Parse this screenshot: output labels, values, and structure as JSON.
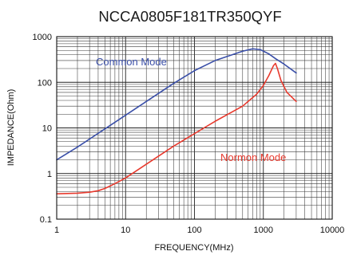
{
  "chart_data": {
    "type": "line",
    "title": "NCCA0805F181TR350QYF",
    "xlabel": "FREQUENCY(MHz)",
    "ylabel": "IMPEDANCE(Ohm)",
    "x_scale": "log",
    "y_scale": "log",
    "xlim": [
      1,
      10000
    ],
    "ylim": [
      0.1,
      1000
    ],
    "x_ticks": [
      1,
      10,
      100,
      1000,
      10000
    ],
    "x_tick_labels": [
      "1",
      "10",
      "100",
      "1000",
      "10000"
    ],
    "y_ticks": [
      0.1,
      1,
      10,
      100,
      1000
    ],
    "y_tick_labels": [
      "0.1",
      "1",
      "10",
      "100",
      "1000"
    ],
    "grid": true,
    "legend": "none",
    "series": [
      {
        "name": "Common Mode",
        "color": "#3a4fa8",
        "x": [
          1,
          2,
          5,
          10,
          20,
          50,
          100,
          200,
          300,
          500,
          700,
          900,
          1200,
          1500,
          2000,
          3000
        ],
        "y": [
          2,
          3.8,
          9.5,
          19,
          38,
          95,
          180,
          300,
          370,
          480,
          540,
          520,
          420,
          330,
          250,
          160
        ]
      },
      {
        "name": "Normon Mode",
        "color": "#e83a2e",
        "x": [
          1,
          2,
          3,
          4,
          5,
          7,
          10,
          20,
          50,
          100,
          200,
          500,
          800,
          1000,
          1200,
          1400,
          1500,
          1600,
          1800,
          2200,
          3000
        ],
        "y": [
          0.36,
          0.37,
          0.39,
          0.42,
          0.47,
          0.6,
          0.8,
          1.6,
          4,
          7.5,
          14,
          30,
          55,
          85,
          140,
          230,
          260,
          200,
          110,
          60,
          38
        ]
      }
    ]
  }
}
